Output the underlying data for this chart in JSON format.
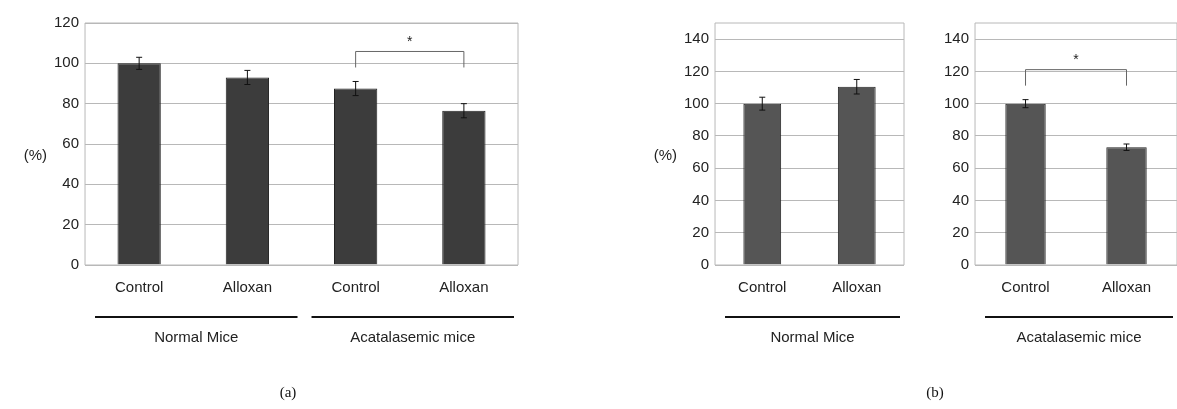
{
  "chart_data": [
    {
      "type": "bar",
      "categories": [
        "Control",
        "Alloxan",
        "Control",
        "Alloxan"
      ],
      "values": [
        100,
        93,
        87.5,
        76.5
      ],
      "errors": [
        3,
        3.5,
        3.5,
        3.5
      ],
      "color": "#3c3c3c",
      "ylim": [
        0,
        120
      ],
      "yticks": [
        0,
        20,
        40,
        60,
        80,
        100,
        120
      ],
      "grid": "y",
      "ylabel": "(%)",
      "annotations": [
        "*",
        "Normal Mice",
        "Acatalasemic mice",
        "(a)"
      ]
    },
    {
      "type": "bar",
      "categories": [
        "Control",
        "Alloxan"
      ],
      "values": [
        100,
        110.5
      ],
      "errors": [
        4,
        4.5
      ],
      "color": "#555555",
      "ylim": [
        0,
        150
      ],
      "yticks": [
        0,
        20,
        40,
        60,
        80,
        100,
        120,
        140
      ],
      "grid": "y",
      "ylabel": "(%)",
      "xlabel": "Normal Mice"
    },
    {
      "type": "bar",
      "categories": [
        "Control",
        "Alloxan"
      ],
      "values": [
        100,
        73
      ],
      "errors": [
        2.5,
        2
      ],
      "color": "#555555",
      "ylim": [
        0,
        150
      ],
      "yticks": [
        0,
        20,
        40,
        60,
        80,
        100,
        120,
        140
      ],
      "grid": "y",
      "xlabel": "Acatalasemic mice",
      "annotations": [
        "*",
        "(b)"
      ]
    }
  ]
}
